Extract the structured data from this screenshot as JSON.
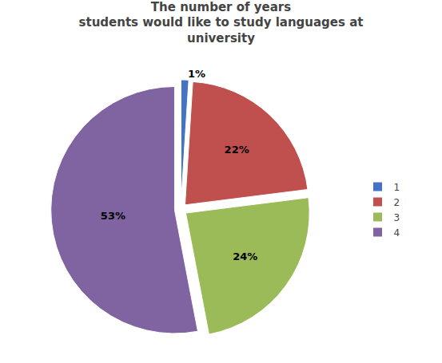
{
  "chart_data": {
    "type": "pie",
    "title": "The number of years\nstudents would like to study languages at\nuniversity",
    "categories": [
      "1",
      "2",
      "3",
      "4"
    ],
    "values": [
      1,
      22,
      24,
      53
    ],
    "value_labels": [
      "1%",
      "22%",
      "24%",
      "53%"
    ],
    "colors": [
      "#4472C4",
      "#C0504D",
      "#9BBB59",
      "#8064A2"
    ],
    "data_labels": true,
    "legend": "right"
  }
}
